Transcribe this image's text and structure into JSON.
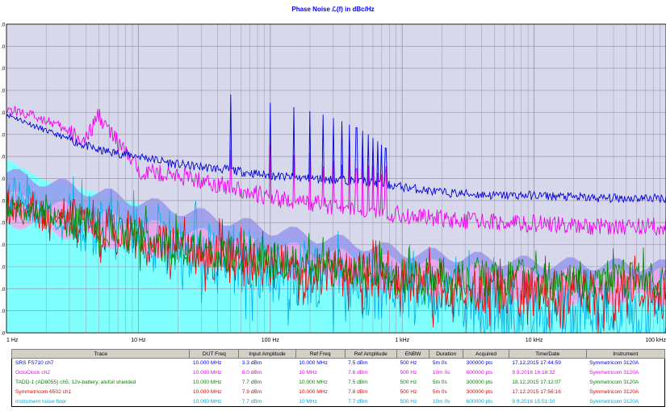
{
  "title": "Phase Noise ℒ(f) in dBc/Hz",
  "colors": {
    "plot_bg": "#d8d8ec",
    "grid": "#9a9aaa",
    "band_blue": "#9898ee",
    "band_pink": "#f4a8ec",
    "floor_fill": "#80ffff"
  },
  "chart_data": {
    "type": "line",
    "title": "Phase Noise ℒ(f) in dBc/Hz",
    "x_scale": "log",
    "xlim": [
      1,
      100000
    ],
    "x_ticks": [
      {
        "value": 1,
        "label": "1 Hz"
      },
      {
        "value": 10,
        "label": "10 Hz"
      },
      {
        "value": 100,
        "label": "100 Hz"
      },
      {
        "value": 1000,
        "label": "1 kHz"
      },
      {
        "value": 10000,
        "label": "10 kHz"
      },
      {
        "value": 100000,
        "label": "100 kHz"
      }
    ],
    "ylim": [
      -160,
      -105
    ],
    "y_tick_labels": [
      ".0",
      ".0",
      ".0",
      ".0",
      ".0",
      ".0",
      ".0",
      ".0",
      ".0",
      ".0",
      ".0",
      ".0",
      ".0",
      ".0",
      ".0"
    ],
    "grid": true,
    "series": [
      {
        "name": "SRS FS710 ch7",
        "color": "#0000dd",
        "x": [
          1,
          2,
          5,
          10,
          20,
          50,
          100,
          200,
          500,
          1000,
          2000,
          5000,
          10000,
          30000,
          100000
        ],
        "y": [
          -121,
          -124,
          -127.5,
          -128.5,
          -130,
          -131,
          -132,
          -132.5,
          -133,
          -134,
          -135,
          -135.5,
          -135.5,
          -136,
          -136
        ]
      },
      {
        "name": "OctoClock ch2",
        "color": "#ee00ee",
        "x": [
          1,
          2,
          4,
          5,
          6,
          10,
          20,
          50,
          100,
          200,
          500,
          1000,
          3000,
          10000,
          30000,
          100000
        ],
        "y": [
          -120,
          -122,
          -126,
          -121,
          -124,
          -131,
          -132,
          -134,
          -136,
          -137,
          -138,
          -139,
          -140,
          -140.5,
          -141,
          -141
        ]
      },
      {
        "name": "TADD-1 (AD8055) ch5, 12v-battery, alufoil shielded",
        "color": "#008800",
        "x": [
          1,
          2,
          5,
          10,
          20,
          50,
          100,
          200,
          500,
          1000,
          2000,
          5000,
          10000,
          30000,
          100000
        ],
        "y": [
          -138,
          -139,
          -141,
          -143,
          -145,
          -146,
          -147,
          -148,
          -149,
          -150,
          -150,
          -150,
          -150.5,
          -150.5,
          -150.5
        ]
      },
      {
        "name": "Symmetricom 6502 ch1",
        "color": "#ee0000",
        "x": [
          1,
          2,
          5,
          10,
          20,
          50,
          100,
          200,
          500,
          1000,
          2000,
          5000,
          10000,
          30000,
          100000
        ],
        "y": [
          -138,
          -139,
          -141,
          -143,
          -145,
          -147,
          -148,
          -149,
          -150,
          -151,
          -152,
          -152.5,
          -153,
          -153,
          -153
        ]
      },
      {
        "name": "Instrument noise floor",
        "color": "#00b0e8",
        "x": [
          1,
          2,
          5,
          10,
          20,
          50,
          100,
          200,
          500,
          1000,
          2000,
          5000,
          10000,
          30000,
          100000
        ],
        "y": [
          -135,
          -139,
          -141,
          -143,
          -145,
          -147,
          -149,
          -150,
          -152,
          -153,
          -154,
          -156,
          -156,
          -156.5,
          -157
        ]
      }
    ]
  },
  "legend": {
    "headers": [
      "Trace",
      "DUT Freq",
      "Input Amplitude",
      "Ref Freq",
      "Ref Amplitude",
      "ENBW",
      "Duration",
      "Acquired",
      "Time/Date",
      "Instrument"
    ],
    "rows": [
      {
        "color": "#0000ee",
        "cells": [
          "SRS FS710 ch7",
          "10.000 MHz",
          "3.3 dBm",
          "10.000 MHz",
          "7.5 dBm",
          "500 Hz",
          "5m 0s",
          "300000 pts",
          "17.12.2015 17:44:59",
          "Symmetricom 3120A"
        ]
      },
      {
        "color": "#ee00ee",
        "cells": [
          "OctoClock ch2",
          "10.000 MHz",
          "8.0 dBm",
          "10 MHz",
          "7.6 dBm",
          "500 Hz",
          "10m 0s",
          "600000 pts",
          "9.9.2016 16:18:32",
          "Symmetricom 3120A"
        ]
      },
      {
        "color": "#008800",
        "cells": [
          "TADD-1 (AD8055) ch5, 12v-battery, alufoil shielded",
          "10.000 MHz",
          "7.7 dBm",
          "10.000 MHz",
          "7.5 dBm",
          "500 Hz",
          "5m 0s",
          "300000 pts",
          "18.12.2015 17:12:07",
          "Symmetricom 3120A"
        ]
      },
      {
        "color": "#ee0000",
        "cells": [
          "Symmetricom 6502 ch1",
          "10.000 MHz",
          "7.9 dBm",
          "10.000 MHz",
          "7.8 dBm",
          "500 Hz",
          "5m 0s",
          "300000 pts",
          "17.12.2015 17:56:16",
          "Symmetricom 3120A"
        ]
      },
      {
        "color": "#00aadd",
        "cells": [
          "Instrument noise floor",
          "10.000 MHz",
          "7.7 dBm",
          "10 MHz",
          "7.7 dBm",
          "500 Hz",
          "10m 0s",
          "600000 pts",
          "9.9.2016 15:51:10",
          "Symmetricom 3120A"
        ]
      }
    ]
  }
}
